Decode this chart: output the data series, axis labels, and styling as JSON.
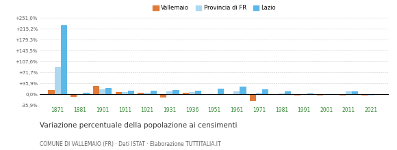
{
  "years": [
    1871,
    1881,
    1901,
    1911,
    1921,
    1931,
    1936,
    1951,
    1961,
    1971,
    1981,
    1991,
    2001,
    2011,
    2021
  ],
  "vallemaio": [
    14.5,
    -9.5,
    26.0,
    7.0,
    5.0,
    -11.0,
    5.0,
    -3.0,
    -3.0,
    -22.0,
    0.5,
    -4.0,
    -3.5,
    -5.5,
    -4.0
  ],
  "provincia_fr": [
    91.0,
    0.0,
    15.0,
    6.0,
    4.5,
    8.0,
    7.0,
    -3.0,
    8.0,
    4.5,
    3.0,
    0.5,
    0.5,
    9.0,
    -3.5
  ],
  "lazio": [
    227.0,
    5.0,
    20.0,
    11.0,
    11.0,
    14.0,
    12.0,
    18.0,
    25.0,
    16.0,
    10.0,
    1.5,
    1.0,
    8.0,
    -1.5
  ],
  "color_vallemaio": "#e07b3a",
  "color_provincia": "#add8f0",
  "color_lazio": "#5bb8e8",
  "title": "Variazione percentuale della popolazione ai censimenti",
  "subtitle": "COMUNE DI VALLEMAIO (FR) · Dati ISTAT · Elaborazione TUTTITALIA.IT",
  "ylim": [
    -35.9,
    251.0
  ],
  "yticks": [
    -35.9,
    0.0,
    35.9,
    71.7,
    107.6,
    143.5,
    179.3,
    215.2,
    251.0
  ],
  "ytick_labels": [
    "-35,9%",
    "0,0%",
    "+35,9%",
    "+71,7%",
    "+107,6%",
    "+143,5%",
    "+179,3%",
    "+215,2%",
    "+251,0%"
  ],
  "background_color": "#ffffff",
  "grid_color": "#cccccc"
}
